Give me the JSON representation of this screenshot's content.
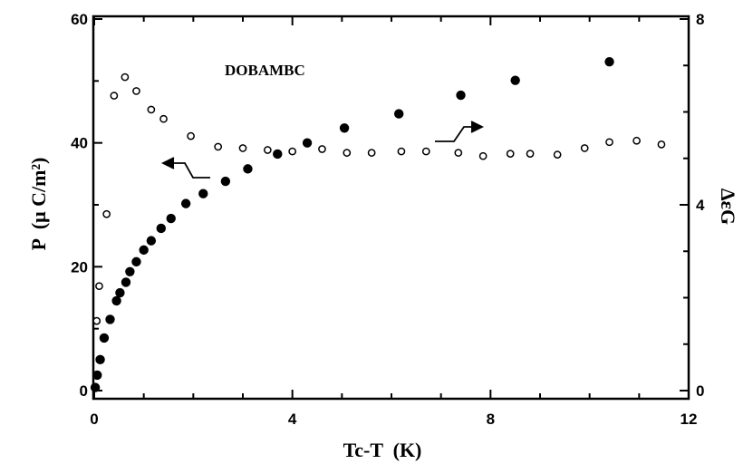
{
  "chart_data": {
    "type": "scatter",
    "title": "",
    "annotation": "DOBAMBC",
    "xlabel": "Tc-T  (K)",
    "ylabel_left": "P  (μ C/m²)",
    "ylabel_right": "ΔεG",
    "xlim": [
      0,
      12
    ],
    "ylim_left": [
      0,
      60
    ],
    "ylim_right": [
      0,
      8
    ],
    "x_ticks": [
      "0",
      "4",
      "8",
      "12"
    ],
    "y_left_ticks": [
      "0",
      "20",
      "40",
      "60"
    ],
    "y_right_ticks": [
      "0",
      "4",
      "8"
    ],
    "grid": false,
    "series": [
      {
        "axis": "left",
        "marker": "filled-circle",
        "points": [
          {
            "x": 0.02,
            "y": 0.5
          },
          {
            "x": 0.06,
            "y": 2.5
          },
          {
            "x": 0.12,
            "y": 5.0
          },
          {
            "x": 0.2,
            "y": 8.5
          },
          {
            "x": 0.32,
            "y": 11.5
          },
          {
            "x": 0.45,
            "y": 14.5
          },
          {
            "x": 0.52,
            "y": 15.8
          },
          {
            "x": 0.64,
            "y": 17.5
          },
          {
            "x": 0.72,
            "y": 19.2
          },
          {
            "x": 0.85,
            "y": 20.8
          },
          {
            "x": 1.0,
            "y": 22.7
          },
          {
            "x": 1.15,
            "y": 24.2
          },
          {
            "x": 1.35,
            "y": 26.2
          },
          {
            "x": 1.55,
            "y": 27.8
          },
          {
            "x": 1.85,
            "y": 30.2
          },
          {
            "x": 2.2,
            "y": 31.8
          },
          {
            "x": 2.65,
            "y": 33.8
          },
          {
            "x": 3.1,
            "y": 35.8
          },
          {
            "x": 3.7,
            "y": 38.2
          },
          {
            "x": 4.3,
            "y": 40.0
          },
          {
            "x": 5.05,
            "y": 42.4
          },
          {
            "x": 6.15,
            "y": 44.7
          },
          {
            "x": 7.4,
            "y": 47.7
          },
          {
            "x": 8.5,
            "y": 50.1
          },
          {
            "x": 10.4,
            "y": 53.1
          }
        ]
      },
      {
        "axis": "right",
        "marker": "open-circle",
        "points": [
          {
            "x": 0.05,
            "y": 1.5
          },
          {
            "x": 0.1,
            "y": 2.25
          },
          {
            "x": 0.25,
            "y": 3.8
          },
          {
            "x": 0.4,
            "y": 6.35
          },
          {
            "x": 0.62,
            "y": 6.75
          },
          {
            "x": 0.85,
            "y": 6.45
          },
          {
            "x": 1.15,
            "y": 6.05
          },
          {
            "x": 1.4,
            "y": 5.85
          },
          {
            "x": 1.95,
            "y": 5.48
          },
          {
            "x": 2.5,
            "y": 5.25
          },
          {
            "x": 3.0,
            "y": 5.22
          },
          {
            "x": 3.5,
            "y": 5.18
          },
          {
            "x": 4.0,
            "y": 5.15
          },
          {
            "x": 4.6,
            "y": 5.2
          },
          {
            "x": 5.1,
            "y": 5.12
          },
          {
            "x": 5.6,
            "y": 5.12
          },
          {
            "x": 6.2,
            "y": 5.15
          },
          {
            "x": 6.7,
            "y": 5.15
          },
          {
            "x": 7.35,
            "y": 5.12
          },
          {
            "x": 7.85,
            "y": 5.05
          },
          {
            "x": 8.4,
            "y": 5.1
          },
          {
            "x": 8.8,
            "y": 5.1
          },
          {
            "x": 9.35,
            "y": 5.08
          },
          {
            "x": 9.9,
            "y": 5.22
          },
          {
            "x": 10.4,
            "y": 5.35
          },
          {
            "x": 10.95,
            "y": 5.38
          },
          {
            "x": 11.45,
            "y": 5.3
          }
        ]
      }
    ]
  }
}
